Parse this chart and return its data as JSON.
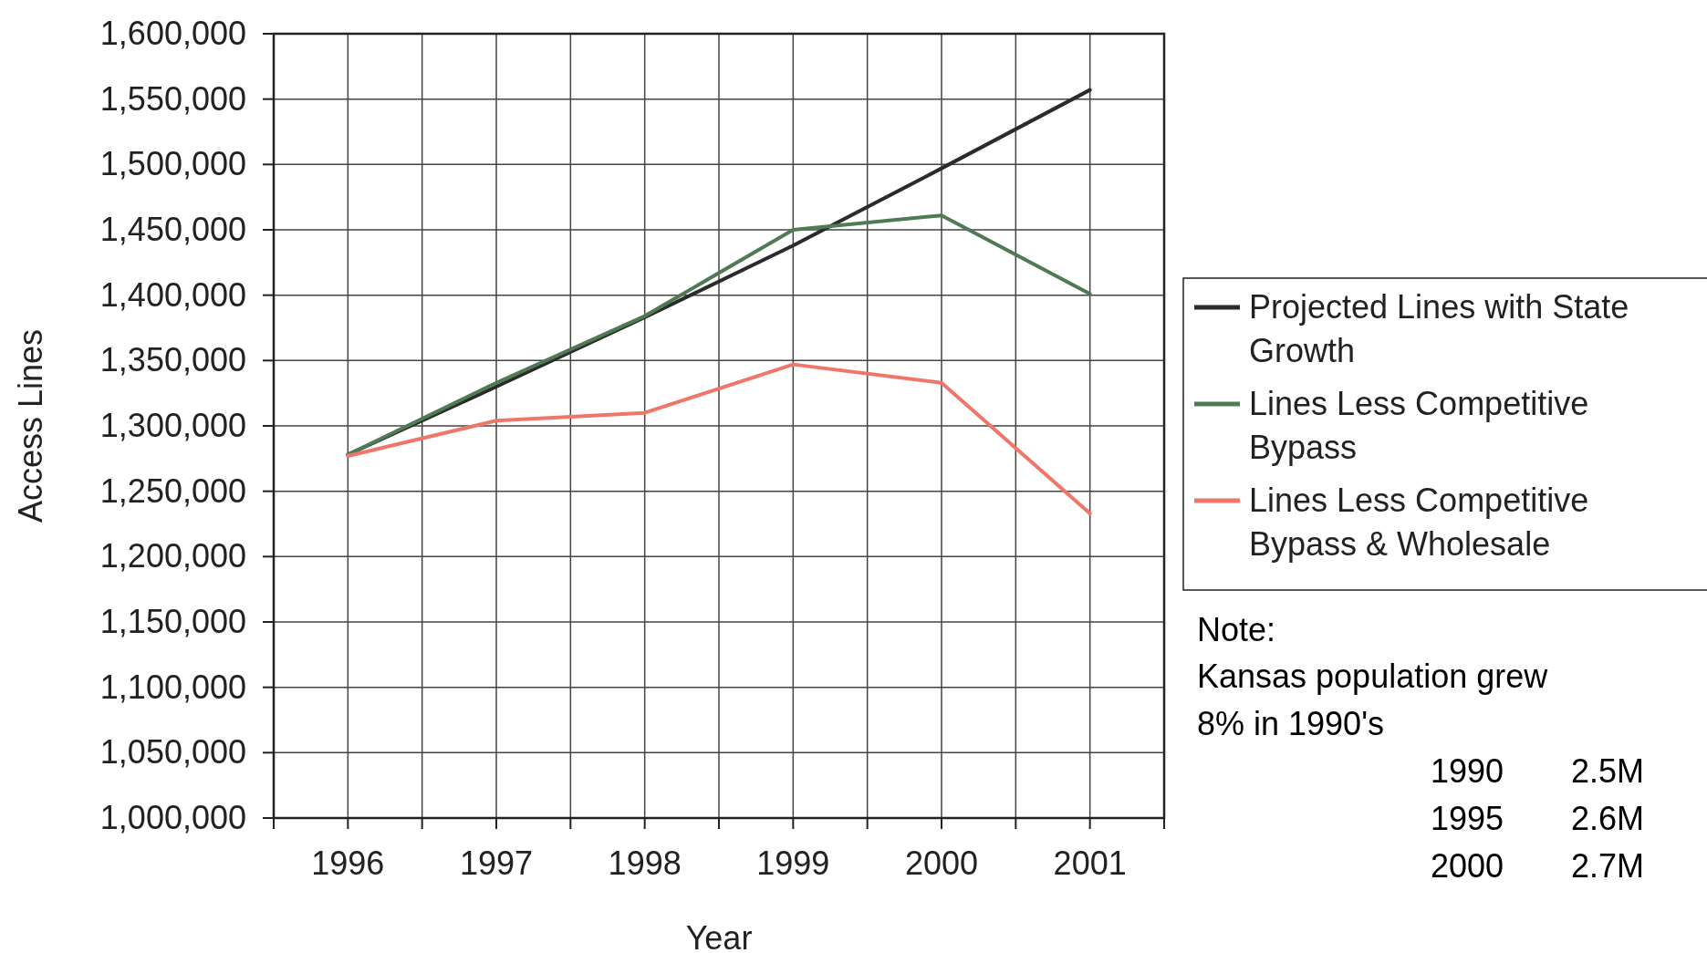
{
  "chart_data": {
    "type": "line",
    "xlabel": "Year",
    "ylabel": "Access Lines",
    "x": [
      1996,
      1997,
      1998,
      1999,
      2000,
      2001
    ],
    "xlim": [
      1995.5,
      2001.5
    ],
    "xticks": [
      {
        "value": 1995.5,
        "label": null
      },
      1996,
      {
        "value": 1996.5,
        "label": null
      },
      1997,
      {
        "value": 1997.5,
        "label": null
      },
      1998,
      {
        "value": 1998.5,
        "label": null
      },
      1999,
      {
        "value": 1999.5,
        "label": null
      },
      2000,
      {
        "value": 2000.5,
        "label": null
      },
      2001,
      {
        "value": 2001.5,
        "label": null
      }
    ],
    "ylim": [
      1000000,
      1600000
    ],
    "yticks": [
      {
        "value": 1000000,
        "label": "1,000,000"
      },
      {
        "value": 1050000,
        "label": "1,050,000"
      },
      {
        "value": 1100000,
        "label": "1,100,000"
      },
      {
        "value": 1150000,
        "label": "1,150,000"
      },
      {
        "value": 1200000,
        "label": "1,200,000"
      },
      {
        "value": 1250000,
        "label": "1,250,000"
      },
      {
        "value": 1300000,
        "label": "1,300,000"
      },
      {
        "value": 1350000,
        "label": "1,350,000"
      },
      {
        "value": 1400000,
        "label": "1,400,000"
      },
      {
        "value": 1450000,
        "label": "1,450,000"
      },
      {
        "value": 1500000,
        "label": "1,500,000"
      },
      {
        "value": 1550000,
        "label": "1,550,000"
      },
      {
        "value": 1600000,
        "label": "1,600,000"
      }
    ],
    "grid": true,
    "legend": "right",
    "marker": "none",
    "line_style": "solid",
    "series": [
      {
        "name": "Projected Lines with State Growth",
        "color": "#2b2b2b",
        "values": [
          1278000,
          1330000,
          1383000,
          1438000,
          1497000,
          1557000
        ]
      },
      {
        "name": "Lines Less Competitive Bypass",
        "color": "#4f7a55",
        "values": [
          1278000,
          1333000,
          1384000,
          1450000,
          1461000,
          1401000
        ]
      },
      {
        "name": "Lines Less Competitive Bypass & Wholesale",
        "color": "#f0766a",
        "values": [
          1277000,
          1304000,
          1310000,
          1347000,
          1333000,
          1233000
        ]
      }
    ],
    "annotations": [
      "Note:",
      "Kansas population grew 8% in 1990's",
      "1990 2.5M",
      "1995 2.6M",
      "2000 2.7M"
    ]
  }
}
